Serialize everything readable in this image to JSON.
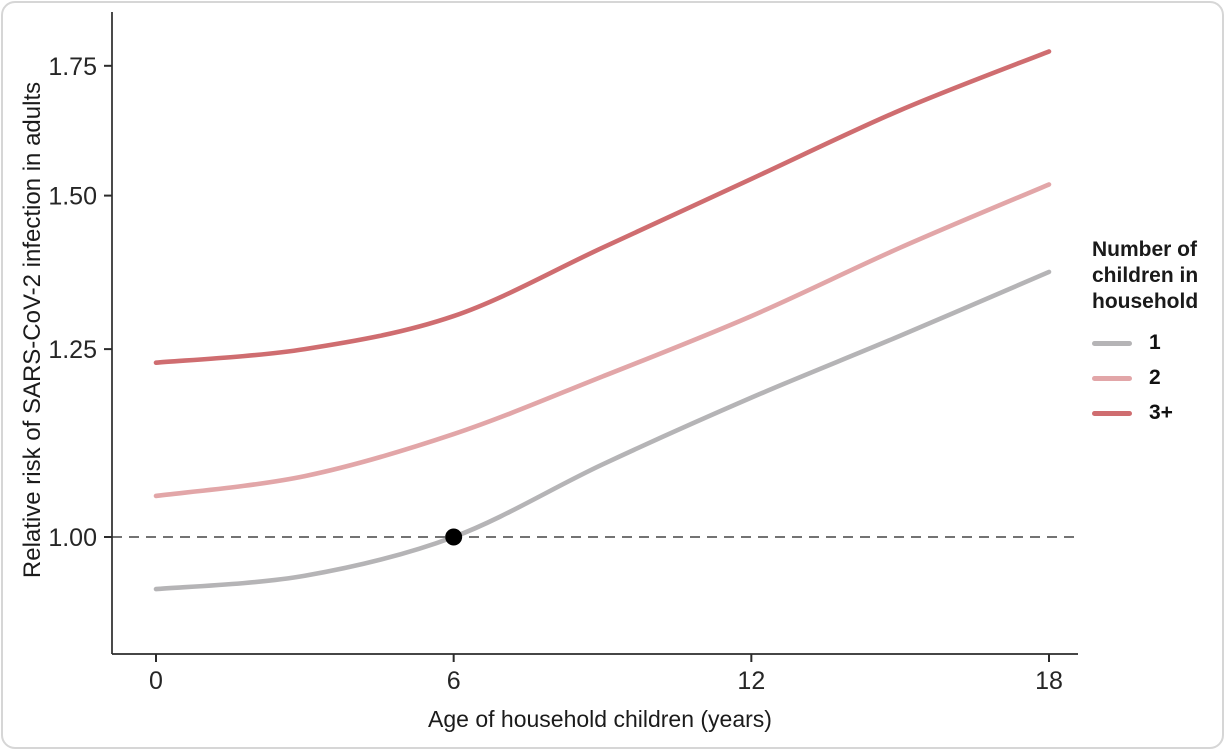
{
  "figure": {
    "background": "#ffffff",
    "border_color": "#d6d6d6"
  },
  "chart_data": {
    "type": "line",
    "title": "",
    "xlabel": "Age of household children (years)",
    "ylabel": "Relative risk of SARS-CoV-2 infection in adults",
    "x": [
      0,
      3,
      6,
      9,
      12,
      15,
      18
    ],
    "xticks": [
      0,
      6,
      12,
      18
    ],
    "xtick_labels": [
      "0",
      "6",
      "12",
      "18"
    ],
    "yticks": [
      1.0,
      1.25,
      1.5,
      1.75
    ],
    "ytick_labels": [
      "1.00",
      "1.25",
      "1.50",
      "1.75"
    ],
    "y_scale": "log",
    "xlim": [
      -0.9,
      18.6
    ],
    "ylim": [
      0.87,
      1.87
    ],
    "grid": false,
    "axis_color": "#2b2b2b",
    "reference_line": {
      "y": 1.0,
      "style": "dashed",
      "color": "#454545"
    },
    "annotation_point": {
      "x": 6,
      "y": 1.0,
      "color": "#000000"
    },
    "series": [
      {
        "name": "1",
        "color": "#b5b4b6",
        "values": [
          0.94,
          0.955,
          1.0,
          1.09,
          1.18,
          1.27,
          1.37
        ]
      },
      {
        "name": "2",
        "color": "#e2a6a8",
        "values": [
          1.05,
          1.075,
          1.13,
          1.21,
          1.3,
          1.41,
          1.52
        ]
      },
      {
        "name": "3+",
        "color": "#cf6d70",
        "values": [
          1.23,
          1.25,
          1.3,
          1.41,
          1.53,
          1.66,
          1.78
        ]
      }
    ],
    "legend": {
      "title": "Number of children in household",
      "position": "right",
      "entries": [
        "1",
        "2",
        "3+"
      ]
    }
  }
}
